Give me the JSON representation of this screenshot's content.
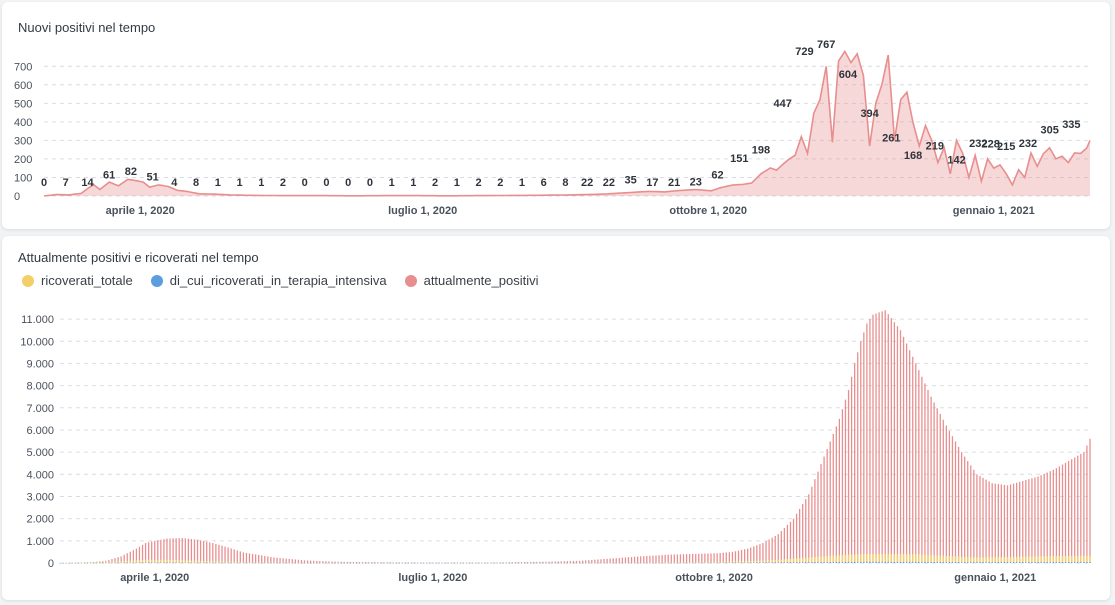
{
  "chart_data": [
    {
      "type": "area",
      "title": "Nuovi positivi nel tempo",
      "xlabel": "",
      "ylabel": "",
      "ylim": [
        0,
        750
      ],
      "yticks": [
        "0",
        "100",
        "200",
        "300",
        "400",
        "500",
        "600",
        "700"
      ],
      "xticks": [
        "aprile 1, 2020",
        "luglio 1, 2020",
        "ottobre 1, 2020",
        "gennaio 1, 2021"
      ],
      "xtick_days": [
        31,
        122,
        214,
        306
      ],
      "x_range_days": [
        0,
        337
      ],
      "color": "#e88e8e",
      "grid": true,
      "series_key_days": [
        0,
        4,
        8,
        12,
        14,
        16,
        18,
        21,
        24,
        27,
        30,
        32,
        34,
        37,
        40,
        43,
        46,
        50,
        55,
        60,
        65,
        70,
        80,
        90,
        100,
        110,
        120,
        130,
        140,
        150,
        160,
        170,
        180,
        185,
        190,
        195,
        200,
        205,
        210,
        215,
        218,
        222,
        225,
        228,
        231,
        234,
        236,
        238,
        240,
        242,
        244,
        246,
        248,
        250,
        252,
        254,
        256,
        258,
        260,
        262,
        264,
        266,
        268,
        270,
        272,
        274,
        276,
        278,
        280,
        282,
        284,
        286,
        288,
        290,
        292,
        294,
        296,
        298,
        300,
        302,
        304,
        306,
        308,
        310,
        312,
        314,
        316,
        318,
        320,
        322,
        324,
        326,
        328,
        330,
        332,
        334,
        336,
        337
      ],
      "series_key_values": [
        0,
        8,
        6,
        14,
        40,
        61,
        35,
        75,
        55,
        90,
        82,
        75,
        48,
        60,
        51,
        30,
        25,
        12,
        10,
        6,
        4,
        3,
        2,
        2,
        1,
        2,
        2,
        1,
        2,
        3,
        4,
        6,
        10,
        15,
        20,
        25,
        22,
        30,
        35,
        28,
        45,
        60,
        62,
        70,
        120,
        151,
        140,
        170,
        198,
        220,
        320,
        230,
        447,
        520,
        700,
        290,
        729,
        780,
        720,
        767,
        650,
        270,
        500,
        604,
        760,
        300,
        520,
        560,
        394,
        270,
        380,
        300,
        180,
        261,
        120,
        300,
        230,
        100,
        219,
        80,
        200,
        150,
        168,
        120,
        60,
        142,
        100,
        232,
        160,
        228,
        260,
        200,
        215,
        180,
        232,
        230,
        260,
        300,
        305,
        340,
        335,
        250
      ]
    },
    {
      "type": "bar",
      "title": "Attualmente positivi e ricoverati nel tempo",
      "xlabel": "",
      "ylabel": "",
      "ylim": [
        0,
        11500
      ],
      "yticks": [
        "0",
        "1.000",
        "2.000",
        "3.000",
        "4.000",
        "5.000",
        "6.000",
        "7.000",
        "8.000",
        "9.000",
        "10.000",
        "11.000"
      ],
      "xticks": [
        "aprile 1, 2020",
        "luglio 1, 2020",
        "ottobre 1, 2020",
        "gennaio 1, 2021"
      ],
      "xtick_days": [
        31,
        122,
        214,
        306
      ],
      "x_range_days": [
        0,
        337
      ],
      "grid": true,
      "series": [
        {
          "name": "ricoverati_totale",
          "color": "#f2cf67",
          "key_days": [
            0,
            20,
            28,
            36,
            45,
            60,
            80,
            120,
            160,
            190,
            210,
            230,
            245,
            255,
            262,
            270,
            280,
            290,
            300,
            310,
            320,
            337
          ],
          "key_values": [
            0,
            80,
            150,
            140,
            100,
            40,
            15,
            5,
            10,
            20,
            40,
            100,
            250,
            350,
            400,
            410,
            400,
            320,
            250,
            270,
            300,
            330
          ]
        },
        {
          "name": "di_cui_ricoverati_in_terapia_intensiva",
          "color": "#5b9ee0",
          "key_days": [
            0,
            28,
            45,
            80,
            200,
            250,
            262,
            280,
            300,
            337
          ],
          "key_values": [
            0,
            20,
            15,
            3,
            5,
            40,
            55,
            50,
            40,
            45
          ]
        },
        {
          "name": "attualmente_positivi",
          "color": "#e88e8e",
          "key_days": [
            0,
            10,
            15,
            20,
            25,
            28,
            31,
            35,
            40,
            45,
            50,
            55,
            60,
            70,
            80,
            90,
            100,
            120,
            140,
            160,
            170,
            180,
            190,
            200,
            210,
            215,
            220,
            225,
            230,
            235,
            240,
            245,
            250,
            255,
            258,
            260,
            262,
            264,
            266,
            270,
            275,
            280,
            285,
            290,
            295,
            300,
            305,
            310,
            315,
            320,
            325,
            330,
            335,
            337
          ],
          "key_values": [
            0,
            30,
            100,
            300,
            650,
            900,
            1000,
            1100,
            1130,
            1050,
            900,
            700,
            480,
            250,
            120,
            60,
            40,
            20,
            20,
            60,
            100,
            200,
            300,
            380,
            420,
            440,
            500,
            650,
            900,
            1300,
            2000,
            3100,
            4800,
            6500,
            7800,
            9000,
            10000,
            10800,
            11200,
            11400,
            10500,
            9000,
            7500,
            6200,
            5000,
            4000,
            3600,
            3500,
            3700,
            3900,
            4200,
            4600,
            5000,
            5600
          ]
        }
      ]
    }
  ],
  "legend": [
    {
      "label": "ricoverati_totale",
      "color": "#f2cf67"
    },
    {
      "label": "di_cui_ricoverati_in_terapia_intensiva",
      "color": "#5b9ee0"
    },
    {
      "label": "attualmente_positivi",
      "color": "#e88e8e"
    }
  ],
  "chart1_labels": [
    {
      "day": 0,
      "text": "0"
    },
    {
      "day": 7,
      "text": "7"
    },
    {
      "day": 14,
      "text": "14"
    },
    {
      "day": 21,
      "text": "61"
    },
    {
      "day": 28,
      "text": "82"
    },
    {
      "day": 35,
      "text": "51"
    },
    {
      "day": 42,
      "text": "4"
    },
    {
      "day": 49,
      "text": "8"
    },
    {
      "day": 56,
      "text": "1"
    },
    {
      "day": 63,
      "text": "1"
    },
    {
      "day": 70,
      "text": "1"
    },
    {
      "day": 77,
      "text": "2"
    },
    {
      "day": 84,
      "text": "0"
    },
    {
      "day": 91,
      "text": "0"
    },
    {
      "day": 98,
      "text": "0"
    },
    {
      "day": 105,
      "text": "0"
    },
    {
      "day": 112,
      "text": "1"
    },
    {
      "day": 119,
      "text": "1"
    },
    {
      "day": 126,
      "text": "2"
    },
    {
      "day": 133,
      "text": "1"
    },
    {
      "day": 140,
      "text": "2"
    },
    {
      "day": 147,
      "text": "2"
    },
    {
      "day": 154,
      "text": "1"
    },
    {
      "day": 161,
      "text": "6"
    },
    {
      "day": 168,
      "text": "8"
    },
    {
      "day": 175,
      "text": "22"
    },
    {
      "day": 182,
      "text": "22"
    },
    {
      "day": 189,
      "text": "35"
    },
    {
      "day": 196,
      "text": "17"
    },
    {
      "day": 203,
      "text": "21"
    },
    {
      "day": 210,
      "text": "23"
    },
    {
      "day": 217,
      "text": "62"
    },
    {
      "day": 224,
      "text": "151"
    },
    {
      "day": 231,
      "text": "198"
    },
    {
      "day": 238,
      "text": "447"
    },
    {
      "day": 245,
      "text": "729"
    },
    {
      "day": 252,
      "text": "767"
    },
    {
      "day": 259,
      "text": "604"
    },
    {
      "day": 266,
      "text": "394"
    },
    {
      "day": 273,
      "text": "261"
    },
    {
      "day": 280,
      "text": "168"
    },
    {
      "day": 287,
      "text": "219"
    },
    {
      "day": 294,
      "text": "142"
    },
    {
      "day": 301,
      "text": "232"
    },
    {
      "day": 305,
      "text": "228"
    },
    {
      "day": 310,
      "text": "215"
    },
    {
      "day": 317,
      "text": "232"
    },
    {
      "day": 324,
      "text": "305"
    },
    {
      "day": 331,
      "text": "335"
    }
  ]
}
